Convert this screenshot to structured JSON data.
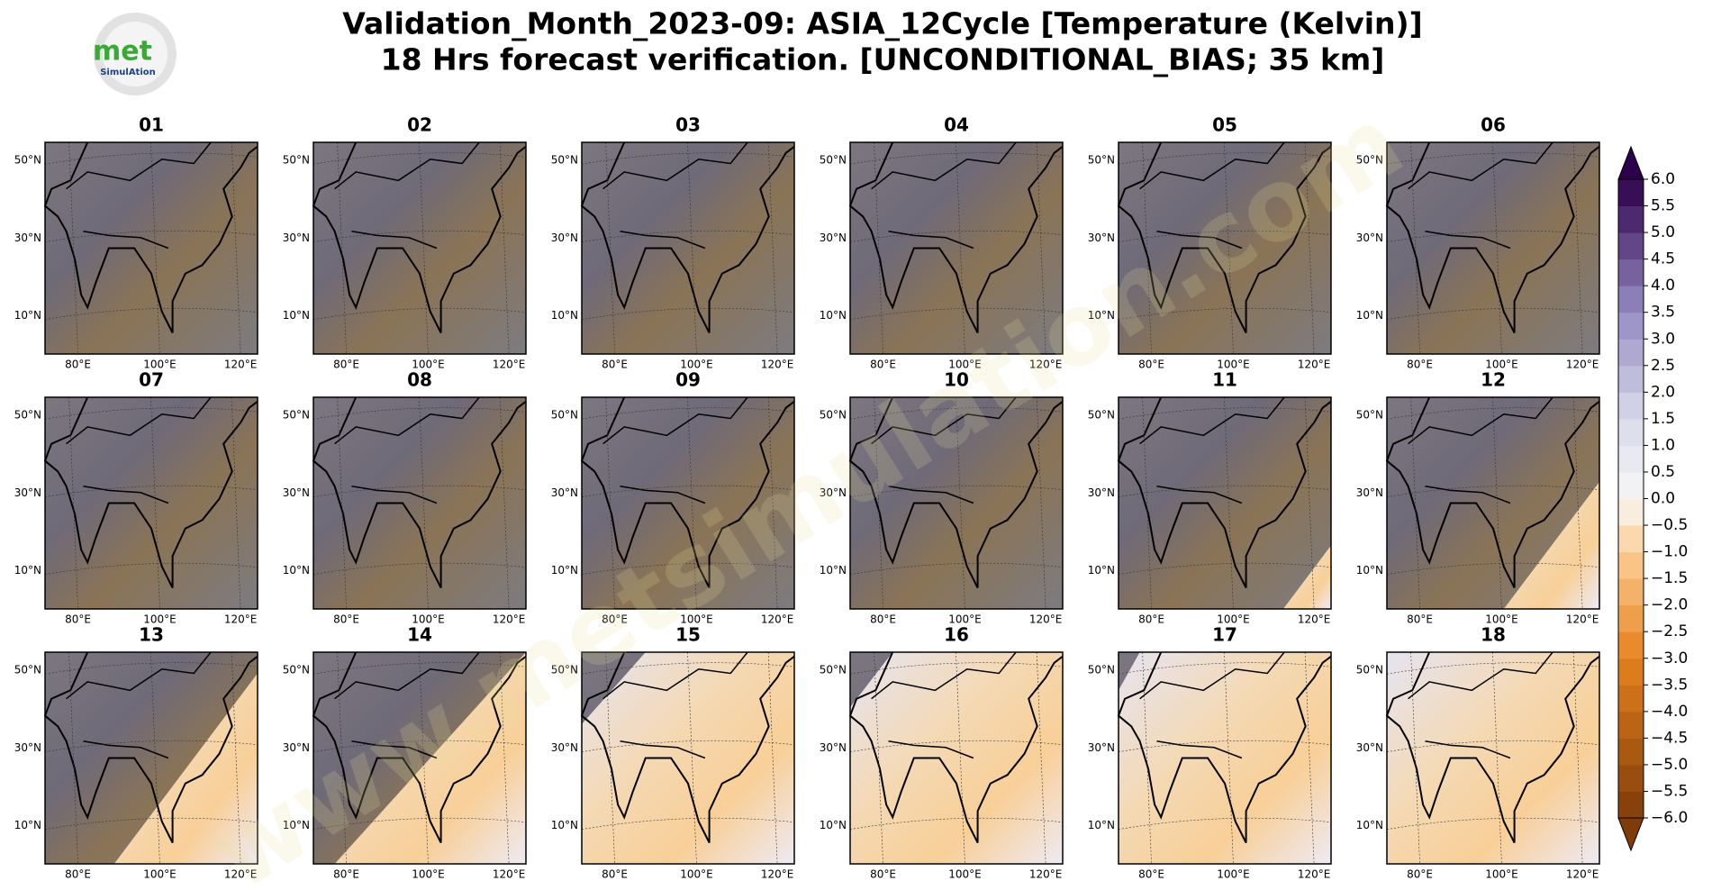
{
  "header": {
    "title_line1": "Validation_Month_2023-09: ASIA_12Cycle [Temperature (Kelvin)]",
    "title_line2": "18 Hrs forecast verification. [UNCONDITIONAL_BIAS; 35 km]"
  },
  "logo": {
    "word": "met",
    "sub": "SimulAtion"
  },
  "watermark": "www.metsimulation.com",
  "panels": [
    "01",
    "02",
    "03",
    "04",
    "05",
    "06",
    "07",
    "08",
    "09",
    "10",
    "11",
    "12",
    "13",
    "14",
    "15",
    "16",
    "17",
    "18"
  ],
  "lat_ticks": [
    "50°N",
    "30°N",
    "10°N"
  ],
  "lon_ticks": [
    "80°E",
    "100°E",
    "120°E"
  ],
  "colorbar": {
    "lim": [
      -6,
      6
    ],
    "ticks": [
      {
        "value": 6,
        "label": "6.0"
      },
      {
        "value": 5.5,
        "label": "5.5"
      },
      {
        "value": 5,
        "label": "5.0"
      },
      {
        "value": 4.5,
        "label": "4.5"
      },
      {
        "value": 4,
        "label": "4.0"
      },
      {
        "value": 3.5,
        "label": "3.5"
      },
      {
        "value": 3,
        "label": "3.0"
      },
      {
        "value": 2.5,
        "label": "2.5"
      },
      {
        "value": 2,
        "label": "2.0"
      },
      {
        "value": 1.5,
        "label": "1.5"
      },
      {
        "value": 1,
        "label": "1.0"
      },
      {
        "value": 0.5,
        "label": "0.5"
      },
      {
        "value": 0,
        "label": "0.0"
      },
      {
        "value": -0.5,
        "label": "−0.5"
      },
      {
        "value": -1,
        "label": "−1.0"
      },
      {
        "value": -1.5,
        "label": "−1.5"
      },
      {
        "value": -2,
        "label": "−2.0"
      },
      {
        "value": -2.5,
        "label": "−2.5"
      },
      {
        "value": -3,
        "label": "−3.0"
      },
      {
        "value": -3.5,
        "label": "−3.5"
      },
      {
        "value": -4,
        "label": "−4.0"
      },
      {
        "value": -4.5,
        "label": "−4.5"
      },
      {
        "value": -5,
        "label": "−5.0"
      },
      {
        "value": -5.5,
        "label": "−5.5"
      },
      {
        "value": -6,
        "label": "−6.0"
      }
    ]
  }
}
